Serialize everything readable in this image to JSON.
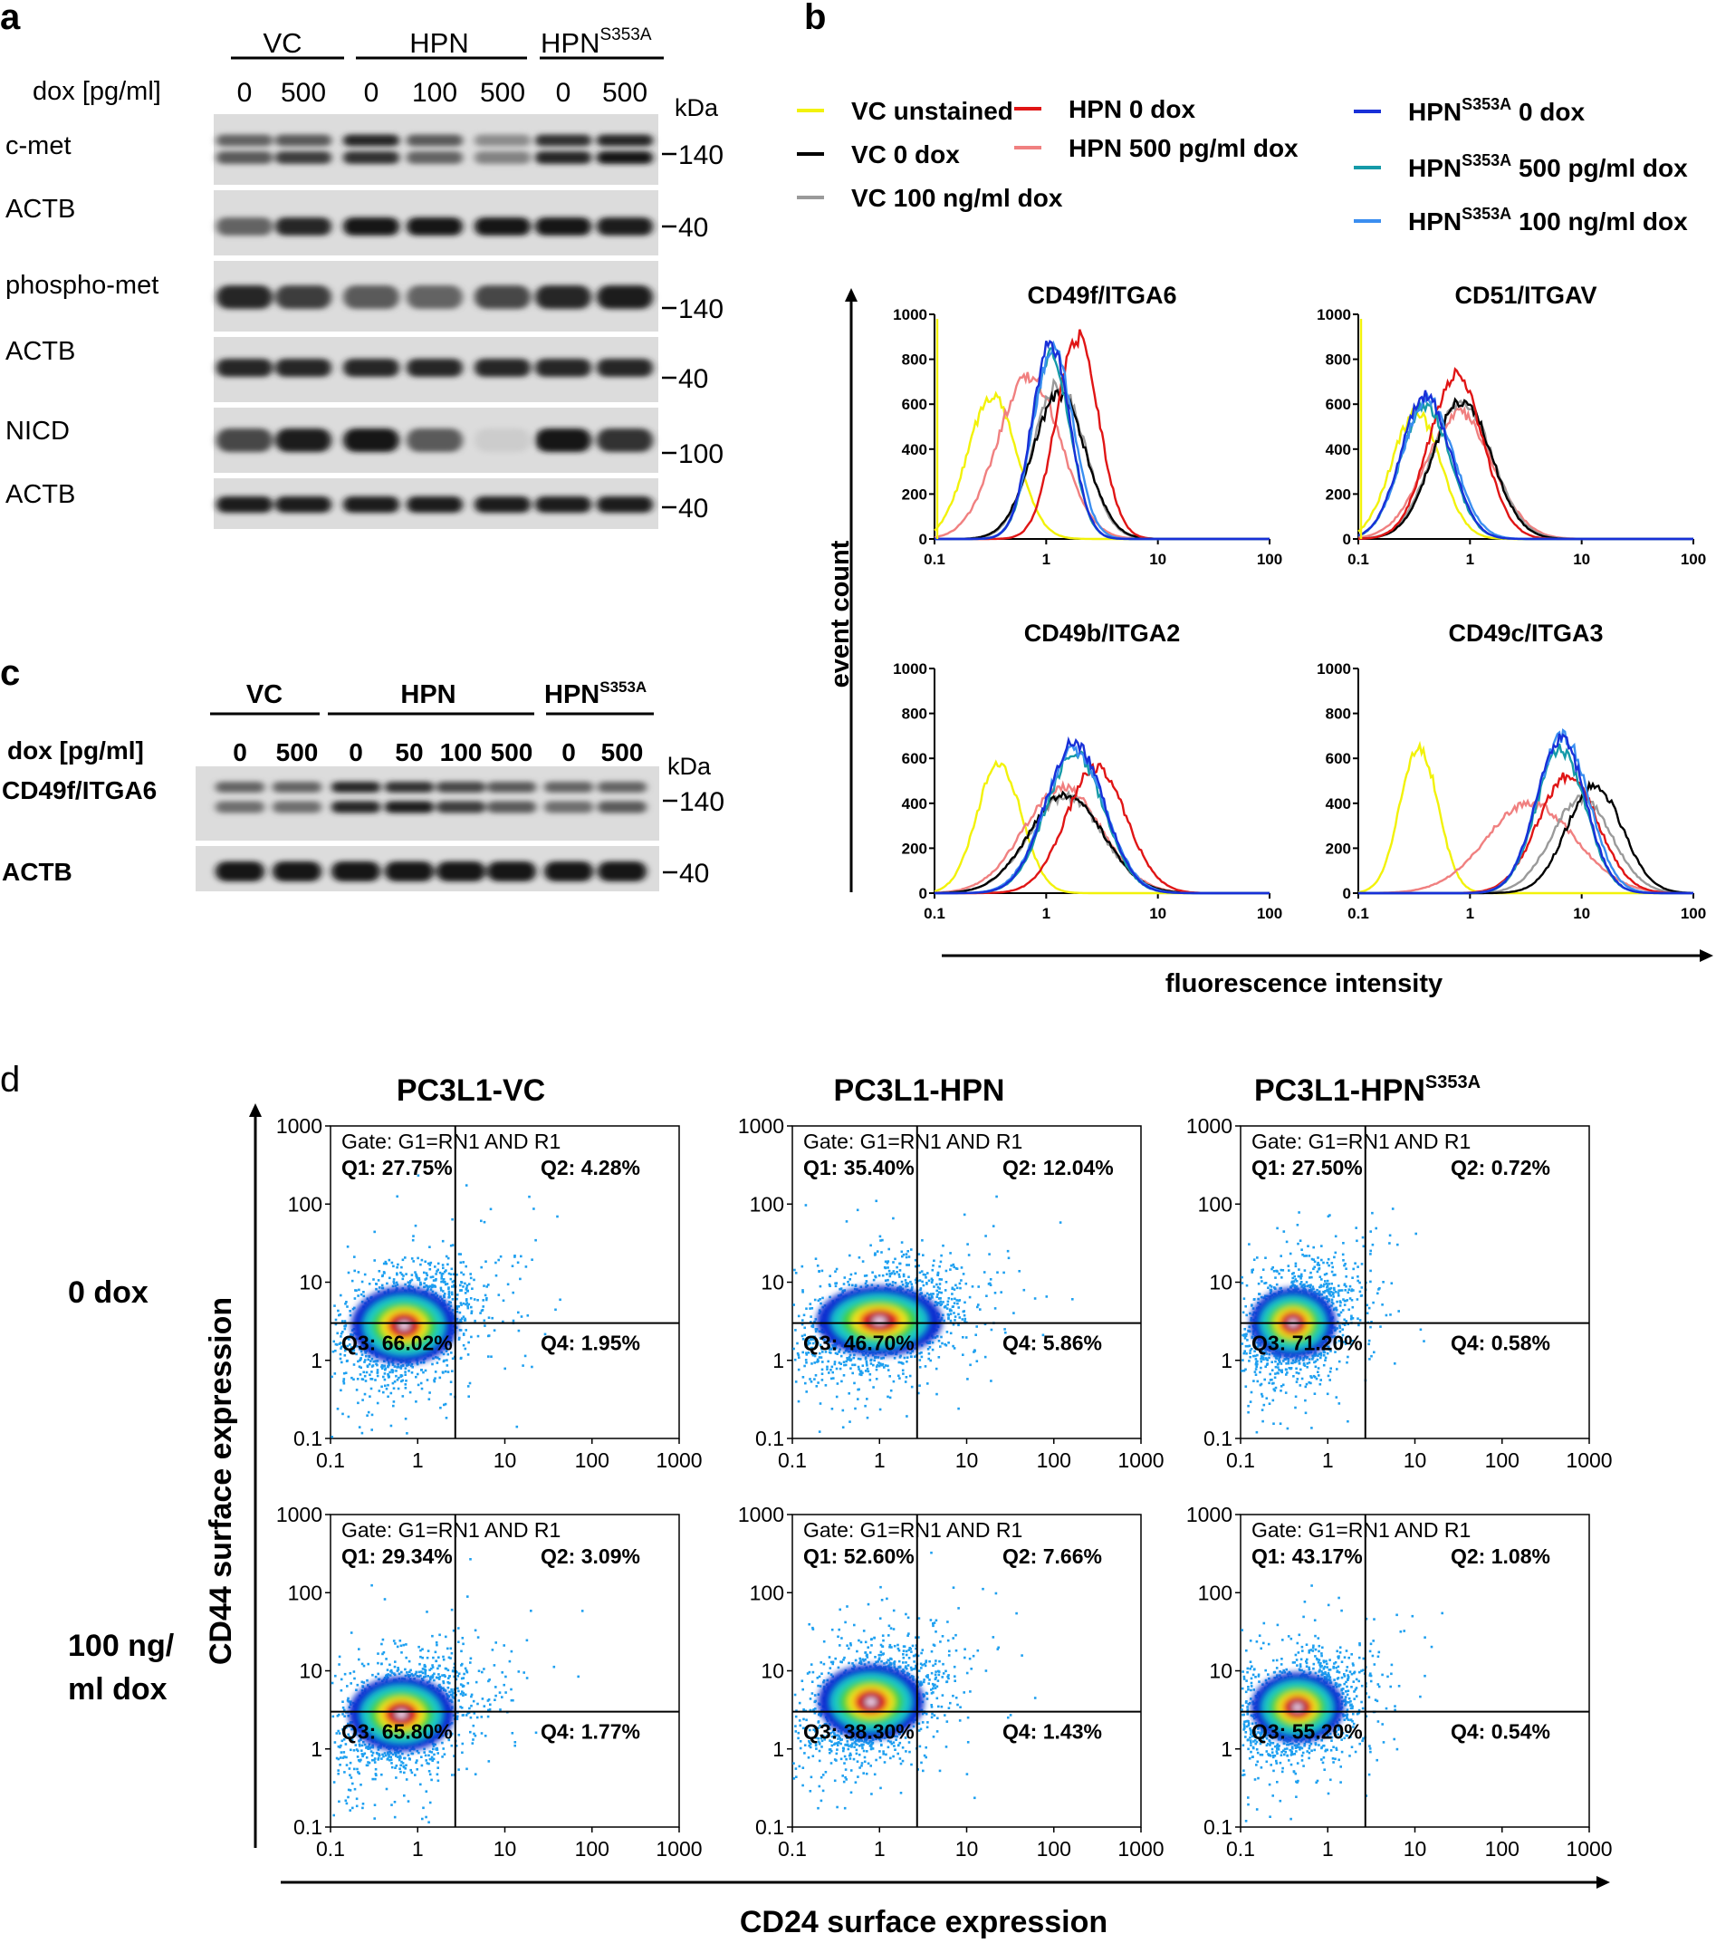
{
  "panel_letters": {
    "a": "a",
    "b": "b",
    "c": "c",
    "d": "d"
  },
  "colors": {
    "vc_unstained": "#f2f20a",
    "vc_0": "#000000",
    "vc_100": "#9a9a9a",
    "hpn_0": "#e01515",
    "hpn_500": "#f08080",
    "mut_0": "#1830d8",
    "mut_500": "#159aa8",
    "mut_100": "#3a8ef0",
    "dot_base": "#1ea0f0"
  },
  "panel_a": {
    "groups": [
      {
        "label": "VC"
      },
      {
        "label": "HPN"
      },
      {
        "label": "HPN",
        "sup": "S353A"
      }
    ],
    "dox_label": "dox [pg/ml]",
    "doses": [
      "0",
      "500",
      "0",
      "100",
      "500",
      "0",
      "500"
    ],
    "kda_label": "kDa",
    "blots": [
      {
        "label": "c-met",
        "marker": "140"
      },
      {
        "label": "ACTB",
        "marker": "40"
      },
      {
        "label": "phospho-met",
        "marker": "140"
      },
      {
        "label": "ACTB",
        "marker": "40"
      },
      {
        "label": "NICD",
        "marker": "100"
      },
      {
        "label": "ACTB",
        "marker": "40"
      }
    ]
  },
  "panel_c": {
    "groups": [
      {
        "label": "VC"
      },
      {
        "label": "HPN"
      },
      {
        "label": "HPN",
        "sup": "S353A"
      }
    ],
    "dox_label": "dox [pg/ml]",
    "doses": [
      "0",
      "500",
      "0",
      "50",
      "100",
      "500",
      "0",
      "500"
    ],
    "kda_label": "kDa",
    "blots": [
      {
        "label": "CD49f/ITGA6",
        "marker": "140"
      },
      {
        "label": "ACTB",
        "marker": "40"
      }
    ]
  },
  "legend": [
    {
      "key": "vc_unstained",
      "label": "VC unstained"
    },
    {
      "key": "vc_0",
      "label": "VC 0 dox"
    },
    {
      "key": "vc_100",
      "label": "VC 100 ng/ml dox"
    },
    {
      "key": "hpn_0",
      "label": "HPN 0 dox"
    },
    {
      "key": "hpn_500",
      "label": "HPN 500 pg/ml dox"
    },
    {
      "key": "mut_0",
      "label": "HPN",
      "sup": "S353A",
      "rest": " 0 dox"
    },
    {
      "key": "mut_500",
      "label": "HPN",
      "sup": "S353A",
      "rest": " 500 pg/ml dox"
    },
    {
      "key": "mut_100",
      "label": "HPN",
      "sup": "S353A",
      "rest": " 100 ng/ml dox"
    }
  ],
  "chart_data": [
    {
      "type": "line",
      "title": "CD49f/ITGA6",
      "xscale": "log",
      "xlim": [
        0.1,
        100
      ],
      "ylim": [
        0,
        1000
      ],
      "xticks": [
        "0.1",
        "1",
        "10",
        "100"
      ],
      "yticks": [
        "0",
        "200",
        "400",
        "600",
        "800",
        "1000"
      ],
      "xlabel": "fluorescence intensity",
      "ylabel": "event count",
      "series": [
        {
          "name": "VC unstained",
          "key": "vc_unstained",
          "peak_x": 0.33,
          "peak_y": 640,
          "width": 0.22
        },
        {
          "name": "VC 0 dox",
          "key": "vc_0",
          "peak_x": 1.3,
          "peak_y": 640,
          "width": 0.24
        },
        {
          "name": "VC 100 ng/ml dox",
          "key": "vc_100",
          "peak_x": 1.3,
          "peak_y": 690,
          "width": 0.23
        },
        {
          "name": "HPN 0 dox",
          "key": "hpn_0",
          "peak_x": 1.9,
          "peak_y": 900,
          "width": 0.19
        },
        {
          "name": "HPN 500 pg/ml dox",
          "key": "hpn_500",
          "peak_x": 0.7,
          "peak_y": 730,
          "width": 0.28
        },
        {
          "name": "HPN S353A 0 dox",
          "key": "mut_0",
          "peak_x": 1.1,
          "peak_y": 870,
          "width": 0.17
        },
        {
          "name": "HPN S353A 500 pg/ml dox",
          "key": "mut_500",
          "peak_x": 1.1,
          "peak_y": 820,
          "width": 0.17
        },
        {
          "name": "HPN S353A 100 ng/ml dox",
          "key": "mut_100",
          "peak_x": 1.15,
          "peak_y": 850,
          "width": 0.18
        }
      ]
    },
    {
      "type": "line",
      "title": "CD51/ITGAV",
      "xscale": "log",
      "xlim": [
        0.1,
        100
      ],
      "ylim": [
        0,
        1000
      ],
      "xticks": [
        "0.1",
        "1",
        "10",
        "100"
      ],
      "yticks": [
        "0",
        "200",
        "400",
        "600",
        "800",
        "1000"
      ],
      "series": [
        {
          "name": "VC unstained",
          "key": "vc_unstained",
          "peak_x": 0.33,
          "peak_y": 560,
          "width": 0.22
        },
        {
          "name": "VC 0 dox",
          "key": "vc_0",
          "peak_x": 0.85,
          "peak_y": 620,
          "width": 0.26
        },
        {
          "name": "VC 100 ng/ml dox",
          "key": "vc_100",
          "peak_x": 0.85,
          "peak_y": 610,
          "width": 0.27
        },
        {
          "name": "HPN 0 dox",
          "key": "hpn_0",
          "peak_x": 0.75,
          "peak_y": 730,
          "width": 0.24
        },
        {
          "name": "HPN 500 pg/ml dox",
          "key": "hpn_500",
          "peak_x": 0.8,
          "peak_y": 560,
          "width": 0.3
        },
        {
          "name": "HPN S353A 0 dox",
          "key": "mut_0",
          "peak_x": 0.4,
          "peak_y": 640,
          "width": 0.22
        },
        {
          "name": "HPN S353A 500 pg/ml dox",
          "key": "mut_500",
          "peak_x": 0.4,
          "peak_y": 600,
          "width": 0.22
        },
        {
          "name": "HPN S353A 100 ng/ml dox",
          "key": "mut_100",
          "peak_x": 0.42,
          "peak_y": 620,
          "width": 0.23
        }
      ]
    },
    {
      "type": "line",
      "title": "CD49b/ITGA2",
      "xscale": "log",
      "xlim": [
        0.1,
        100
      ],
      "ylim": [
        0,
        1000
      ],
      "xticks": [
        "0.1",
        "1",
        "10",
        "100"
      ],
      "yticks": [
        "0",
        "200",
        "400",
        "600",
        "800",
        "1000"
      ],
      "series": [
        {
          "name": "VC unstained",
          "key": "vc_unstained",
          "peak_x": 0.38,
          "peak_y": 580,
          "width": 0.2
        },
        {
          "name": "VC 0 dox",
          "key": "vc_0",
          "peak_x": 1.5,
          "peak_y": 440,
          "width": 0.33
        },
        {
          "name": "VC 100 ng/ml dox",
          "key": "vc_100",
          "peak_x": 1.5,
          "peak_y": 430,
          "width": 0.33
        },
        {
          "name": "HPN 0 dox",
          "key": "hpn_0",
          "peak_x": 2.8,
          "peak_y": 560,
          "width": 0.27
        },
        {
          "name": "HPN 500 pg/ml dox",
          "key": "hpn_500",
          "peak_x": 1.4,
          "peak_y": 470,
          "width": 0.35
        },
        {
          "name": "HPN S353A 0 dox",
          "key": "mut_0",
          "peak_x": 1.8,
          "peak_y": 670,
          "width": 0.26
        },
        {
          "name": "HPN S353A 500 pg/ml dox",
          "key": "mut_500",
          "peak_x": 1.8,
          "peak_y": 620,
          "width": 0.26
        },
        {
          "name": "HPN S353A 100 ng/ml dox",
          "key": "mut_100",
          "peak_x": 1.8,
          "peak_y": 640,
          "width": 0.27
        }
      ]
    },
    {
      "type": "line",
      "title": "CD49c/ITGA3",
      "xscale": "log",
      "xlim": [
        0.1,
        100
      ],
      "ylim": [
        0,
        1000
      ],
      "xticks": [
        "0.1",
        "1",
        "10",
        "100"
      ],
      "yticks": [
        "0",
        "200",
        "400",
        "600",
        "800",
        "1000"
      ],
      "series": [
        {
          "name": "VC unstained",
          "key": "vc_unstained",
          "peak_x": 0.35,
          "peak_y": 650,
          "width": 0.17
        },
        {
          "name": "VC 0 dox",
          "key": "vc_0",
          "peak_x": 13,
          "peak_y": 480,
          "width": 0.25
        },
        {
          "name": "VC 100 ng/ml dox",
          "key": "vc_100",
          "peak_x": 10,
          "peak_y": 420,
          "width": 0.27
        },
        {
          "name": "HPN 0 dox",
          "key": "hpn_0",
          "peak_x": 7.5,
          "peak_y": 520,
          "width": 0.27
        },
        {
          "name": "HPN 500 pg/ml dox",
          "key": "hpn_500",
          "peak_x": 3.5,
          "peak_y": 400,
          "width": 0.4
        },
        {
          "name": "HPN S353A 0 dox",
          "key": "mut_0",
          "peak_x": 6.5,
          "peak_y": 690,
          "width": 0.22
        },
        {
          "name": "HPN S353A 500 pg/ml dox",
          "key": "mut_500",
          "peak_x": 6.5,
          "peak_y": 640,
          "width": 0.22
        },
        {
          "name": "HPN S353A 100 ng/ml dox",
          "key": "mut_100",
          "peak_x": 6.8,
          "peak_y": 700,
          "width": 0.23
        }
      ]
    },
    {
      "type": "scatter",
      "xscale": "log",
      "yscale": "log",
      "xlim": [
        0.1,
        1000
      ],
      "ylim": [
        0.1,
        1000
      ],
      "xlabel": "CD24 surface expression",
      "ylabel": "CD44 surface expression",
      "xticks": [
        "0.1",
        "1",
        "10",
        "100",
        "1000"
      ],
      "yticks": [
        "0.1",
        "1",
        "10",
        "100",
        "1000"
      ],
      "gate_x": 2.7,
      "gate_y": 3.0,
      "columns": [
        "PC3L1-VC",
        "PC3L1-HPN",
        "PC3L1-HPN"
      ],
      "column_sup": [
        "",
        "",
        "S353A"
      ],
      "rows": [
        "0 dox",
        "100 ng/ ml dox"
      ],
      "gate_label": "Gate: G1=RN1 AND R1",
      "plots": [
        {
          "column": "PC3L1-VC",
          "row": "0 dox",
          "q1": "Q1: 27.75%",
          "q2": "Q2: 4.28%",
          "q3": "Q3: 66.02%",
          "q4": "Q4: 1.95%",
          "cx": 0.7,
          "cy": 2.8,
          "spread_x": 0.32,
          "spread_y": 0.33
        },
        {
          "column": "PC3L1-HPN",
          "row": "0 dox",
          "q1": "Q1: 35.40%",
          "q2": "Q2: 12.04%",
          "q3": "Q3: 46.70%",
          "q4": "Q4: 5.86%",
          "cx": 1.0,
          "cy": 3.2,
          "spread_x": 0.38,
          "spread_y": 0.3
        },
        {
          "column": "PC3L1-HPN S353A",
          "row": "0 dox",
          "q1": "Q1: 27.50%",
          "q2": "Q2: 0.72%",
          "q3": "Q3: 71.20%",
          "q4": "Q4: 0.58%",
          "cx": 0.4,
          "cy": 3.0,
          "spread_x": 0.26,
          "spread_y": 0.3
        },
        {
          "column": "PC3L1-VC",
          "row": "100 ng/ ml dox",
          "q1": "Q1: 29.34%",
          "q2": "Q2: 3.09%",
          "q3": "Q3: 65.80%",
          "q4": "Q4: 1.77%",
          "cx": 0.65,
          "cy": 2.8,
          "spread_x": 0.32,
          "spread_y": 0.32
        },
        {
          "column": "PC3L1-HPN",
          "row": "100 ng/ ml dox",
          "q1": "Q1: 52.60%",
          "q2": "Q2: 7.66%",
          "q3": "Q3: 38.30%",
          "q4": "Q4: 1.43%",
          "cx": 0.8,
          "cy": 4.0,
          "spread_x": 0.32,
          "spread_y": 0.32
        },
        {
          "column": "PC3L1-HPN S353A",
          "row": "100 ng/ ml dox",
          "q1": "Q1: 43.17%",
          "q2": "Q2: 1.08%",
          "q3": "Q3: 55.20%",
          "q4": "Q4: 0.54%",
          "cx": 0.45,
          "cy": 3.4,
          "spread_x": 0.28,
          "spread_y": 0.3
        }
      ]
    }
  ]
}
